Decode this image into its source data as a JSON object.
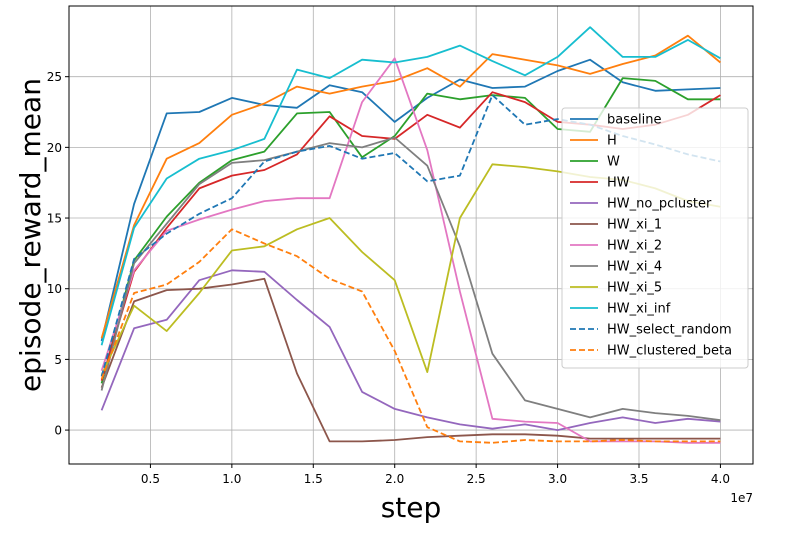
{
  "chart_data": {
    "type": "line",
    "xlabel": "step",
    "ylabel": "episode_reward_mean",
    "x_offset_label": "1e7",
    "xlim": [
      0,
      42000000
    ],
    "ylim": [
      -2.4,
      30
    ],
    "x_ticks": [
      5000000,
      10000000,
      15000000,
      20000000,
      25000000,
      30000000,
      35000000,
      40000000
    ],
    "x_tick_labels": [
      "0.5",
      "1.0",
      "1.5",
      "2.0",
      "2.5",
      "3.0",
      "3.5",
      "4.0"
    ],
    "y_ticks": [
      0,
      5,
      10,
      15,
      20,
      25
    ],
    "y_tick_labels": [
      "0",
      "5",
      "10",
      "15",
      "20",
      "25"
    ],
    "grid": true,
    "legend_position": "center-right",
    "x": [
      2000000,
      4000000,
      6000000,
      8000000,
      10000000,
      12000000,
      14000000,
      16000000,
      18000000,
      20000000,
      22000000,
      24000000,
      26000000,
      28000000,
      30000000,
      32000000,
      34000000,
      36000000,
      38000000,
      40000000
    ],
    "series": [
      {
        "name": "baseline",
        "color": "#1f77b4",
        "dash": "solid",
        "values": [
          6.3,
          16.0,
          22.4,
          22.5,
          23.5,
          23.0,
          22.8,
          24.4,
          23.9,
          21.8,
          23.5,
          24.8,
          24.2,
          24.3,
          25.4,
          26.2,
          24.6,
          24.0,
          24.1,
          24.2
        ]
      },
      {
        "name": "H",
        "color": "#ff7f0e",
        "dash": "solid",
        "values": [
          6.5,
          14.5,
          19.2,
          20.3,
          22.3,
          23.1,
          24.3,
          23.8,
          24.3,
          24.7,
          25.6,
          24.3,
          26.6,
          26.2,
          25.8,
          25.2,
          25.9,
          26.5,
          27.9,
          26.0
        ]
      },
      {
        "name": "W",
        "color": "#2ca02c",
        "dash": "solid",
        "values": [
          3.3,
          12.0,
          15.1,
          17.5,
          19.1,
          19.7,
          22.4,
          22.5,
          19.3,
          20.8,
          23.8,
          23.4,
          23.7,
          23.5,
          21.3,
          21.1,
          24.9,
          24.7,
          23.4,
          23.4
        ]
      },
      {
        "name": "HW",
        "color": "#d62728",
        "dash": "solid",
        "values": [
          3.5,
          11.2,
          14.3,
          17.1,
          18.0,
          18.4,
          19.5,
          22.2,
          20.8,
          20.6,
          22.3,
          21.4,
          23.9,
          23.2,
          21.8,
          21.6,
          21.3,
          21.6,
          22.3,
          23.7
        ]
      },
      {
        "name": "HW_no_pcluster",
        "color": "#9467bd",
        "dash": "solid",
        "values": [
          1.4,
          7.2,
          7.8,
          10.6,
          11.3,
          11.2,
          9.2,
          7.3,
          2.7,
          1.5,
          0.9,
          0.4,
          0.1,
          0.4,
          0.0,
          0.5,
          0.9,
          0.5,
          0.8,
          0.6
        ]
      },
      {
        "name": "HW_xi_1",
        "color": "#8c564b",
        "dash": "solid",
        "values": [
          3.0,
          9.1,
          9.9,
          10.0,
          10.3,
          10.7,
          4.0,
          -0.8,
          -0.8,
          -0.7,
          -0.5,
          -0.4,
          -0.3,
          -0.3,
          -0.4,
          -0.6,
          -0.6,
          -0.6,
          -0.6,
          -0.6
        ]
      },
      {
        "name": "HW_xi_2",
        "color": "#e377c2",
        "dash": "solid",
        "values": [
          4.2,
          11.3,
          14.1,
          14.9,
          15.6,
          16.2,
          16.4,
          16.4,
          23.2,
          26.3,
          19.8,
          9.8,
          0.8,
          0.6,
          0.5,
          -0.8,
          -0.8,
          -0.8,
          -0.9,
          -0.9
        ]
      },
      {
        "name": "HW_xi_4",
        "color": "#7f7f7f",
        "dash": "solid",
        "values": [
          2.8,
          11.8,
          14.6,
          17.4,
          18.9,
          19.1,
          19.7,
          20.3,
          20.0,
          20.7,
          18.7,
          13.0,
          5.4,
          2.1,
          1.5,
          0.9,
          1.5,
          1.2,
          1.0,
          0.7
        ]
      },
      {
        "name": "HW_xi_5",
        "color": "#bcbd22",
        "dash": "solid",
        "values": [
          3.9,
          8.8,
          7.0,
          9.7,
          12.7,
          13.0,
          14.2,
          15.0,
          12.6,
          10.6,
          4.1,
          15.0,
          18.8,
          18.6,
          18.3,
          17.9,
          17.7,
          17.1,
          16.2,
          15.8
        ]
      },
      {
        "name": "HW_xi_inf",
        "color": "#17becf",
        "dash": "solid",
        "values": [
          6.0,
          14.3,
          17.8,
          19.2,
          19.8,
          20.6,
          25.5,
          24.9,
          26.2,
          26.0,
          26.4,
          27.2,
          26.1,
          25.1,
          26.4,
          28.5,
          26.4,
          26.4,
          27.6,
          26.3
        ]
      },
      {
        "name": "HW_select_random",
        "color": "#1f77b4",
        "dash": "dashed",
        "values": [
          3.8,
          12.1,
          13.9,
          15.3,
          16.4,
          19.0,
          19.7,
          20.1,
          19.2,
          19.6,
          17.6,
          18.0,
          23.7,
          21.6,
          22.0,
          21.6,
          20.8,
          20.2,
          19.5,
          19.0
        ]
      },
      {
        "name": "HW_clustered_beta",
        "color": "#ff7f0e",
        "dash": "dashed",
        "values": [
          3.6,
          9.7,
          10.3,
          11.9,
          14.2,
          13.2,
          12.3,
          10.7,
          9.8,
          5.6,
          0.2,
          -0.8,
          -0.9,
          -0.7,
          -0.8,
          -0.8,
          -0.7,
          -0.8,
          -0.8,
          -0.8
        ]
      }
    ]
  }
}
